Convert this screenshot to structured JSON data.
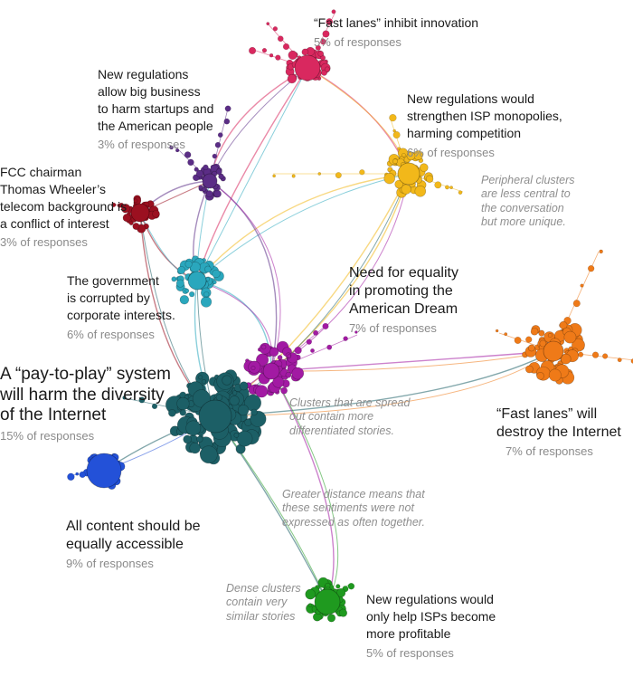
{
  "clusters": [
    {
      "id": "fast-lanes-innovation",
      "title": "“Fast lanes” inhibit innovation",
      "share": "5% of responses",
      "color": "#d9285f"
    },
    {
      "id": "big-business",
      "title": "New regulations\nallow big business\nto harm startups and\nthe American people",
      "share": "3% of responses",
      "color": "#5b2d86"
    },
    {
      "id": "isp-monopolies",
      "title": "New regulations would\nstrengthen ISP monopolies,\nharming competition",
      "share": "6% of responses",
      "color": "#f2b81a"
    },
    {
      "id": "fcc-chairman",
      "title": "FCC chairman\nThomas Wheeler’s\ntelecom background is\na conflict of interest",
      "share": "3% of responses",
      "color": "#9b1020"
    },
    {
      "id": "government-corrupted",
      "title": "The government\nis corrupted by\ncorporate interests.",
      "share": "6% of responses",
      "color": "#2aa7bd"
    },
    {
      "id": "american-dream",
      "title": "Need for equality\nin promoting the\nAmerican Dream",
      "share": "7% of responses",
      "color": "#a21aa3"
    },
    {
      "id": "pay-to-play",
      "title": "A “pay-to-play” system\nwill harm the diversity\nof the Internet",
      "share": "15% of responses",
      "color": "#1c5f66"
    },
    {
      "id": "fast-lanes-destroy",
      "title": "“Fast lanes” will\ndestroy the Internet",
      "share": "7% of responses",
      "color": "#ef7a18"
    },
    {
      "id": "equally-accessible",
      "title": "All content should be\nequally accessible",
      "share": "9% of responses",
      "color": "#2351d8"
    },
    {
      "id": "isps-profitable",
      "title": "New regulations would\nonly help ISPs become\nmore profitable",
      "share": "5% of responses",
      "color": "#1f9a1f"
    }
  ],
  "notes": {
    "peripheral": "Peripheral clusters\nare less central to\nthe conversation\nbut more unique.",
    "spread": "Clusters that are spread\nout contain more\ndifferentiated stories.",
    "distance": "Greater distance means that\nthese sentiments were not\nexpressed as often together.",
    "dense": "Dense clusters\ncontain very\nsimilar stories"
  }
}
